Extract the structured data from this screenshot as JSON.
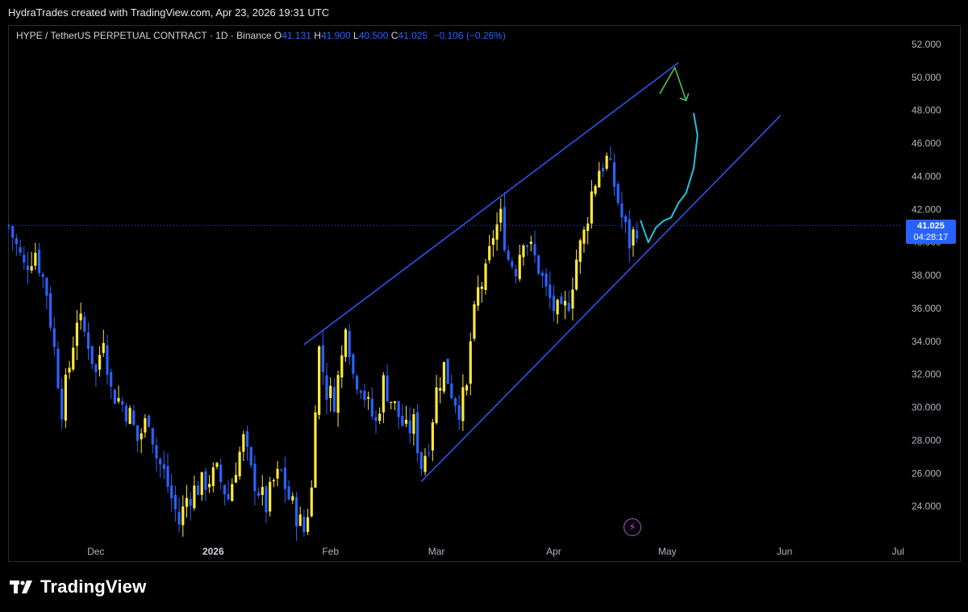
{
  "caption": "HydraTrades created with TradingView.com, Apr 23, 2026 19:31 UTC",
  "legend": {
    "symbol": "HYPE / TetherUS PERPETUAL CONTRACT · 1D · Binance",
    "o_label": "O",
    "o": "41.131",
    "h_label": "H",
    "h": "41.900",
    "l_label": "L",
    "l": "40.500",
    "c_label": "C",
    "c": "41.025",
    "change": "−0.106 (−0.26%)"
  },
  "last_price": {
    "price": "41.025",
    "timer": "04:28:17"
  },
  "brand": "TradingView",
  "colors": {
    "up": "#ffe93b",
    "down": "#2962ff",
    "channel": "#2f54eb",
    "cyan_path": "#22c4dc",
    "green_arrow": "#4caf50",
    "badge": "#2962ff"
  },
  "chart_data": {
    "type": "candlestick",
    "title": "",
    "interval": "1D",
    "exchange": "Binance",
    "ylim": [
      22.0,
      53.5
    ],
    "y_ticks": [
      "24.000",
      "26.000",
      "28.000",
      "30.000",
      "32.000",
      "34.000",
      "36.000",
      "38.000",
      "40.000",
      "42.000",
      "44.000",
      "46.000",
      "48.000",
      "50.000",
      "52.000"
    ],
    "x_ticks": [
      {
        "label": "Dec",
        "date": "2025-12-01",
        "bold": false
      },
      {
        "label": "2026",
        "date": "2026-01-01",
        "bold": true
      },
      {
        "label": "Feb",
        "date": "2026-02-01",
        "bold": false
      },
      {
        "label": "Mar",
        "date": "2026-03-01",
        "bold": false
      },
      {
        "label": "Apr",
        "date": "2026-04-01",
        "bold": false
      },
      {
        "label": "May",
        "date": "2026-05-01",
        "bold": false
      },
      {
        "label": "Jun",
        "date": "2026-06-01",
        "bold": false
      },
      {
        "label": "Jul",
        "date": "2026-07-01",
        "bold": false
      }
    ],
    "xlim": [
      "2025-11-08",
      "2026-07-02"
    ],
    "close_path": [
      [
        "2025-11-08",
        41.0
      ],
      [
        "2025-11-12",
        38.5
      ],
      [
        "2025-11-15",
        39.5
      ],
      [
        "2025-11-18",
        37.0
      ],
      [
        "2025-11-20",
        33.5
      ],
      [
        "2025-11-22",
        30.0
      ],
      [
        "2025-11-24",
        32.5
      ],
      [
        "2025-11-26",
        35.5
      ],
      [
        "2025-11-29",
        34.0
      ],
      [
        "2025-12-01",
        32.0
      ],
      [
        "2025-12-03",
        34.5
      ],
      [
        "2025-12-05",
        31.0
      ],
      [
        "2025-12-07",
        30.5
      ],
      [
        "2025-12-10",
        29.5
      ],
      [
        "2025-12-12",
        28.0
      ],
      [
        "2025-12-15",
        29.5
      ],
      [
        "2025-12-17",
        27.0
      ],
      [
        "2025-12-19",
        26.0
      ],
      [
        "2025-12-21",
        24.5
      ],
      [
        "2025-12-23",
        23.0
      ],
      [
        "2025-12-25",
        24.5
      ],
      [
        "2025-12-27",
        25.0
      ],
      [
        "2025-12-30",
        25.5
      ],
      [
        "2026-01-02",
        26.0
      ],
      [
        "2026-01-05",
        24.5
      ],
      [
        "2026-01-07",
        26.5
      ],
      [
        "2026-01-09",
        28.0
      ],
      [
        "2026-01-11",
        26.0
      ],
      [
        "2026-01-13",
        25.0
      ],
      [
        "2026-01-15",
        24.0
      ],
      [
        "2026-01-17",
        25.5
      ],
      [
        "2026-01-19",
        26.0
      ],
      [
        "2026-01-21",
        24.5
      ],
      [
        "2026-01-23",
        23.5
      ],
      [
        "2026-01-25",
        22.5
      ],
      [
        "2026-01-27",
        25.0
      ],
      [
        "2026-01-28",
        30.5
      ],
      [
        "2026-01-29",
        33.5
      ],
      [
        "2026-01-31",
        31.0
      ],
      [
        "2026-02-02",
        30.5
      ],
      [
        "2026-02-04",
        33.0
      ],
      [
        "2026-02-05",
        35.5
      ],
      [
        "2026-02-07",
        32.0
      ],
      [
        "2026-02-09",
        31.5
      ],
      [
        "2026-02-11",
        30.0
      ],
      [
        "2026-02-13",
        29.0
      ],
      [
        "2026-02-15",
        31.5
      ],
      [
        "2026-02-17",
        30.5
      ],
      [
        "2026-02-19",
        29.5
      ],
      [
        "2026-02-21",
        28.5
      ],
      [
        "2026-02-23",
        29.0
      ],
      [
        "2026-02-25",
        26.5
      ],
      [
        "2026-02-27",
        28.0
      ],
      [
        "2026-03-01",
        31.0
      ],
      [
        "2026-03-03",
        32.5
      ],
      [
        "2026-03-05",
        31.0
      ],
      [
        "2026-03-07",
        30.0
      ],
      [
        "2026-03-09",
        31.0
      ],
      [
        "2026-03-10",
        34.0
      ],
      [
        "2026-03-12",
        37.0
      ],
      [
        "2026-03-14",
        38.0
      ],
      [
        "2026-03-16",
        40.5
      ],
      [
        "2026-03-18",
        41.5
      ],
      [
        "2026-03-20",
        39.0
      ],
      [
        "2026-03-22",
        38.5
      ],
      [
        "2026-03-24",
        40.5
      ],
      [
        "2026-03-26",
        39.5
      ],
      [
        "2026-03-28",
        38.5
      ],
      [
        "2026-03-30",
        37.0
      ],
      [
        "2026-04-01",
        36.0
      ],
      [
        "2026-04-03",
        35.5
      ],
      [
        "2026-04-05",
        36.5
      ],
      [
        "2026-04-07",
        39.0
      ],
      [
        "2026-04-09",
        40.5
      ],
      [
        "2026-04-11",
        43.0
      ],
      [
        "2026-04-13",
        44.5
      ],
      [
        "2026-04-15",
        45.0
      ],
      [
        "2026-04-17",
        43.5
      ],
      [
        "2026-04-19",
        41.5
      ],
      [
        "2026-04-21",
        40.0
      ],
      [
        "2026-04-23",
        41.0
      ]
    ],
    "channel": {
      "upper": [
        [
          "2026-01-25",
          33.8
        ],
        [
          "2026-05-04",
          50.9
        ]
      ],
      "lower": [
        [
          "2026-02-25",
          25.5
        ],
        [
          "2026-05-31",
          47.7
        ]
      ]
    },
    "projection_path": [
      [
        "2026-04-24",
        41.3
      ],
      [
        "2026-04-26",
        40.0
      ],
      [
        "2026-04-28",
        40.9
      ],
      [
        "2026-04-30",
        41.3
      ],
      [
        "2026-05-02",
        41.5
      ],
      [
        "2026-05-04",
        42.4
      ],
      [
        "2026-05-06",
        43.0
      ],
      [
        "2026-05-08",
        44.5
      ],
      [
        "2026-05-09",
        46.5
      ],
      [
        "2026-05-08",
        47.8
      ]
    ],
    "down_arrow": [
      [
        "2026-04-29",
        49.0
      ],
      [
        "2026-05-03",
        50.6
      ],
      [
        "2026-05-06",
        48.6
      ]
    ]
  }
}
